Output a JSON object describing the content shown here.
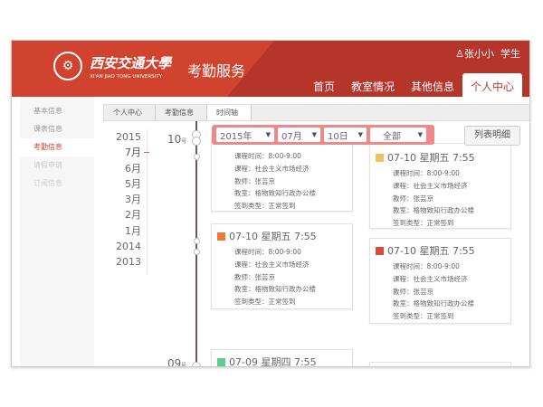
{
  "header": {
    "logo_cn": "西安交通大學",
    "logo_en": "XI'AN JIAO TONG UNIVERSITY",
    "service": "考勤服务",
    "user_name": "张小小",
    "user_role": "学生"
  },
  "nav": [
    "首页",
    "教室情况",
    "其他信息",
    "个人中心"
  ],
  "sidebar": [
    "基本信息",
    "课表信息",
    "考勤信息",
    "请假申请",
    "订阅信息"
  ],
  "breadcrumb": [
    "个人中心",
    "考勤信息",
    "时间轴"
  ],
  "years": [
    "2015",
    "7月",
    "6月",
    "5月",
    "3月",
    "2月",
    "1月",
    "2014",
    "2013"
  ],
  "days": {
    "d1": "10",
    "d2": "09",
    "suffix": "号"
  },
  "filter": {
    "year": "2015年",
    "month": "07月",
    "day": "10日",
    "type": "全部"
  },
  "list_button": "列表明细",
  "labels": {
    "time": "课程时间：",
    "course": "课程：",
    "teacher": "教师：",
    "room": "教室：",
    "sign": "签到类型："
  },
  "cards": [
    {
      "title": "07-10 星期五 7:55",
      "time": "8:00-9:00",
      "course": "社会主义市场经济",
      "teacher": "张芸京",
      "room": "格物致知行政办公楼",
      "sign": "正常签到",
      "color": "#f0c060"
    },
    {
      "title": "07-10 星期五 7:55",
      "time": "8:00-9:00",
      "course": "社会主义市场经济",
      "teacher": "张芸京",
      "room": "格物致知行政办公楼",
      "sign": "正常签到",
      "color": "#f0c060"
    },
    {
      "title": "07-10 星期五 7:55",
      "time": "8:00-9:00",
      "course": "社会主义市场经济",
      "teacher": "张芸京",
      "room": "格物致知行政办公楼",
      "sign": "正常签到",
      "color": "#ee7a3a"
    },
    {
      "title": "07-10 星期五 7:55",
      "time": "8:00-9:00",
      "course": "社会主义市场经济",
      "teacher": "张芸京",
      "room": "格物致知行政办公楼",
      "sign": "正常签到",
      "color": "#d9483b"
    },
    {
      "title": "07-09 星期四 7:55",
      "color": "#5ccf8f"
    }
  ]
}
